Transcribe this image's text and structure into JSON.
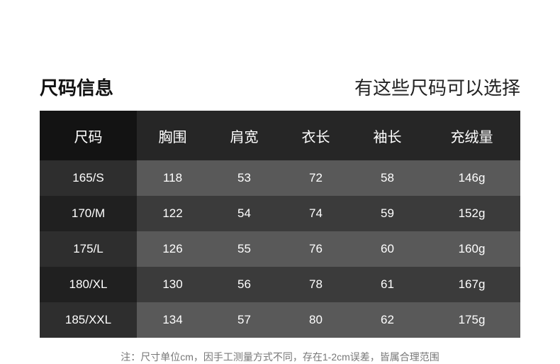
{
  "title": "尺码信息",
  "subtitle": "有这些尺码可以选择",
  "table": {
    "headers": [
      "尺码",
      "胸围",
      "肩宽",
      "衣长",
      "袖长",
      "充绒量"
    ],
    "rows": [
      [
        "165/S",
        "118",
        "53",
        "72",
        "58",
        "146g"
      ],
      [
        "170/M",
        "122",
        "54",
        "74",
        "59",
        "152g"
      ],
      [
        "175/L",
        "126",
        "55",
        "76",
        "60",
        "160g"
      ],
      [
        "180/XL",
        "130",
        "56",
        "78",
        "61",
        "167g"
      ],
      [
        "185/XXL",
        "134",
        "57",
        "80",
        "62",
        "175g"
      ]
    ]
  },
  "note": "注：尺寸单位cm，因手工测量方式不同，存在1-2cm误差，皆属合理范围"
}
